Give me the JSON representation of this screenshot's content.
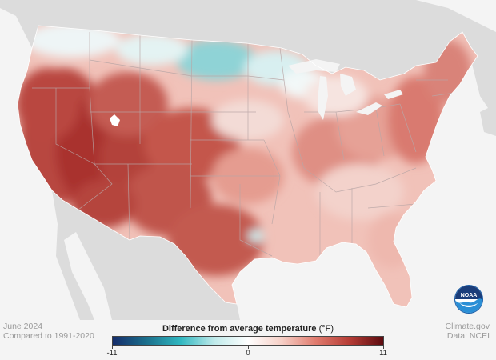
{
  "map": {
    "date": "June 2024",
    "baseline": "Compared to 1991-2020",
    "legend": {
      "title": "Difference from average temperature",
      "unit": "(°F)",
      "min_label": "-11",
      "mid_label": "0",
      "max_label": "11",
      "min": -11,
      "max": 11,
      "colors": [
        "#152d6b",
        "#1b6f8c",
        "#2fb7c0",
        "#bfeaea",
        "#ffffff",
        "#f6cfc6",
        "#e07b6e",
        "#b63d36",
        "#5c0b0f"
      ]
    },
    "credit": {
      "site": "Climate.gov",
      "data": "Data: NCEI"
    },
    "logo_text": "NOAA",
    "region": "Contiguous United States"
  },
  "colors": {
    "background": "#f4f4f4",
    "neighbors": "#dcdcdc",
    "water": "#f4f4f4",
    "state_borders": "#b9a6a6",
    "noaa_blue": "#1c5fa8"
  }
}
